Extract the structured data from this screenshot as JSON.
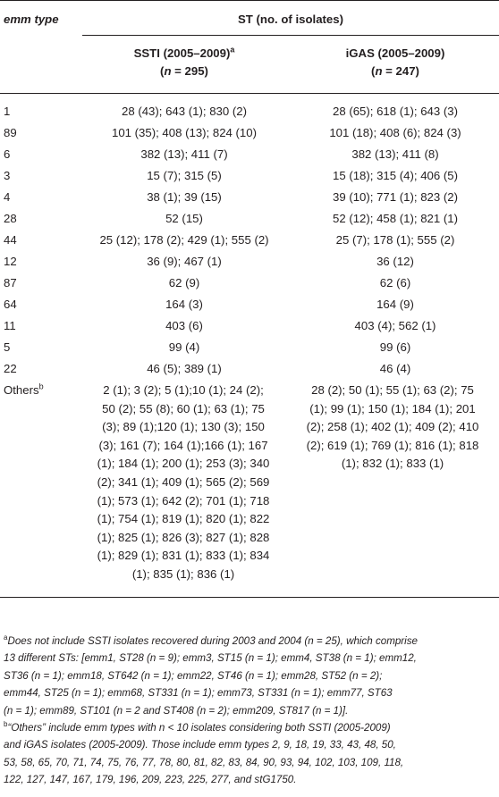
{
  "header": {
    "col1": "emm type",
    "group": "ST (no. of isolates)",
    "sub1_line1": "SSTI (2005–2009)",
    "sub1_sup": "a",
    "sub1_line2_pre": "(",
    "sub1_n": "n",
    "sub1_line2_post": " = 295)",
    "sub2_line1": "iGAS (2005–2009)",
    "sub2_line2_pre": "(",
    "sub2_n": "n",
    "sub2_line2_post": " = 247)"
  },
  "rows": [
    {
      "emm": "1",
      "ssti": "28 (43); 643 (1); 830 (2)",
      "igas": "28 (65); 618 (1); 643 (3)"
    },
    {
      "emm": "89",
      "ssti": "101 (35); 408 (13); 824 (10)",
      "igas": "101 (18); 408 (6); 824 (3)"
    },
    {
      "emm": "6",
      "ssti": "382 (13); 411 (7)",
      "igas": "382 (13); 411 (8)"
    },
    {
      "emm": "3",
      "ssti": "15 (7); 315 (5)",
      "igas": "15 (18); 315 (4); 406 (5)"
    },
    {
      "emm": "4",
      "ssti": "38 (1); 39 (15)",
      "igas": "39 (10); 771 (1); 823 (2)"
    },
    {
      "emm": "28",
      "ssti": "52 (15)",
      "igas": "52 (12); 458 (1); 821 (1)"
    },
    {
      "emm": "44",
      "ssti": "25 (12); 178 (2); 429 (1); 555 (2)",
      "igas": "25 (7); 178 (1); 555 (2)"
    },
    {
      "emm": "12",
      "ssti": "36 (9); 467 (1)",
      "igas": "36 (12)"
    },
    {
      "emm": "87",
      "ssti": "62 (9)",
      "igas": "62 (6)"
    },
    {
      "emm": "64",
      "ssti": "164 (3)",
      "igas": "164 (9)"
    },
    {
      "emm": "11",
      "ssti": "403 (6)",
      "igas": "403 (4); 562 (1)"
    },
    {
      "emm": "5",
      "ssti": "99 (4)",
      "igas": "99 (6)"
    },
    {
      "emm": "22",
      "ssti": "46 (5); 389 (1)",
      "igas": "46 (4)"
    }
  ],
  "others": {
    "label": "Others",
    "sup": "b",
    "ssti_lines": [
      "2 (1); 3 (2); 5 (1);10 (1); 24 (2);",
      "50 (2); 55 (8); 60 (1); 63 (1); 75",
      "(3); 89 (1);120 (1); 130 (3); 150",
      "(3); 161 (7); 164 (1);166 (1); 167",
      "(1); 184 (1); 200 (1); 253 (3); 340",
      "(2); 341 (1); 409 (1); 565 (2); 569",
      "(1); 573 (1); 642 (2); 701 (1); 718",
      "(1); 754 (1); 819 (1); 820 (1); 822",
      "(1); 825 (1); 826 (3); 827 (1); 828",
      "(1); 829 (1); 831 (1); 833 (1); 834",
      "(1); 835 (1); 836 (1)"
    ],
    "igas_lines": [
      "28 (2); 50 (1); 55 (1); 63 (2); 75",
      "(1); 99 (1); 150 (1); 184 (1); 201",
      "(2); 258 (1); 402 (1); 409 (2); 410",
      "(2); 619 (1); 769 (1); 816 (1); 818",
      "(1); 832 (1); 833 (1)"
    ]
  },
  "footnotes": {
    "a_sup": "a",
    "a_lines": [
      "Does not include SSTI isolates recovered during 2003 and 2004 (n = 25), which comprise",
      "13 different STs: [emm1, ST28 (n = 9); emm3, ST15 (n = 1); emm4, ST38 (n = 1); emm12,",
      "ST36 (n = 1); emm18, ST642 (n = 1); emm22, ST46 (n = 1); emm28, ST52 (n = 2);",
      "emm44, ST25 (n = 1); emm68, ST331 (n = 1); emm73, ST331 (n = 1); emm77, ST63",
      "(n = 1); emm89, ST101 (n = 2 and ST408 (n = 2); emm209, ST817 (n = 1)]."
    ],
    "b_sup": "b",
    "b_lines": [
      "“Others” include emm types with n < 10 isolates considering both SSTI (2005-2009)",
      "and iGAS isolates (2005-2009). Those include emm types 2, 9, 18, 19, 33, 43, 48, 50,",
      "53, 58, 65, 70, 71, 74, 75, 76, 77, 78, 80, 81, 82, 83, 84, 90, 93, 94, 102, 103, 109, 118,",
      "122, 127, 147, 167, 179, 196, 209, 223, 225, 277, and stG1750."
    ]
  }
}
